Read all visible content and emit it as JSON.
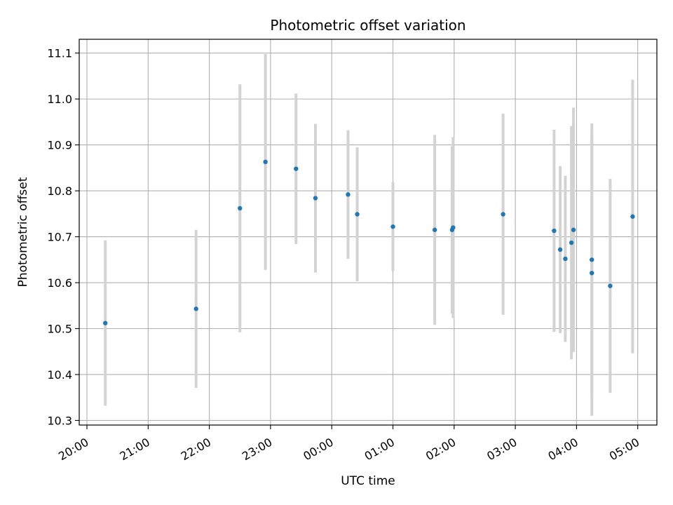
{
  "chart_data": {
    "type": "scatter",
    "title": "Photometric offset variation",
    "xlabel": "UTC time",
    "ylabel": "Photometric offset",
    "x_unit": "time of day (UTC), spanning midnight",
    "x_tick_labels": [
      "20:00",
      "21:00",
      "22:00",
      "23:00",
      "00:00",
      "01:00",
      "02:00",
      "03:00",
      "04:00",
      "05:00"
    ],
    "y_tick_labels": [
      "10.3",
      "10.4",
      "10.5",
      "10.6",
      "10.7",
      "10.8",
      "10.9",
      "11.0",
      "11.1"
    ],
    "ylim": [
      10.29,
      11.13
    ],
    "grid": true,
    "point_color": "#1f77b4",
    "errorbar_color": "#d3d3d3",
    "series": [
      {
        "points": [
          {
            "time": "20:18",
            "y": 10.512,
            "err": 0.18
          },
          {
            "time": "21:47",
            "y": 10.543,
            "err": 0.172
          },
          {
            "time": "22:30",
            "y": 10.762,
            "err": 0.27
          },
          {
            "time": "22:55",
            "y": 10.863,
            "err": 0.235
          },
          {
            "time": "23:25",
            "y": 10.848,
            "err": 0.164
          },
          {
            "time": "23:44",
            "y": 10.784,
            "err": 0.162
          },
          {
            "time": "00:16",
            "y": 10.792,
            "err": 0.14
          },
          {
            "time": "00:25",
            "y": 10.749,
            "err": 0.146
          },
          {
            "time": "01:00",
            "y": 10.722,
            "err": 0.097
          },
          {
            "time": "01:41",
            "y": 10.715,
            "err": 0.207
          },
          {
            "time": "01:58",
            "y": 10.715,
            "err": 0.182
          },
          {
            "time": "01:59",
            "y": 10.72,
            "err": 0.197
          },
          {
            "time": "02:48",
            "y": 10.749,
            "err": 0.219
          },
          {
            "time": "03:38",
            "y": 10.713,
            "err": 0.22
          },
          {
            "time": "03:44",
            "y": 10.672,
            "err": 0.182
          },
          {
            "time": "03:49",
            "y": 10.652,
            "err": 0.181
          },
          {
            "time": "03:55",
            "y": 10.687,
            "err": 0.254
          },
          {
            "time": "03:57",
            "y": 10.715,
            "err": 0.266
          },
          {
            "time": "04:15",
            "y": 10.65,
            "err": 0.297
          },
          {
            "time": "04:15",
            "y": 10.621,
            "err": 0.311
          },
          {
            "time": "04:33",
            "y": 10.593,
            "err": 0.233
          },
          {
            "time": "04:55",
            "y": 10.744,
            "err": 0.298
          }
        ]
      }
    ]
  }
}
